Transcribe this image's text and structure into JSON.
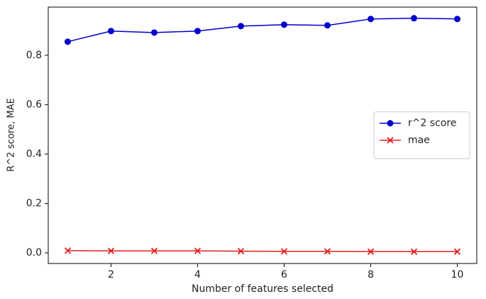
{
  "chart_data": {
    "type": "line",
    "xlabel": "Number of features selected",
    "ylabel": "R^2 score, MAE",
    "x": [
      1,
      2,
      3,
      4,
      5,
      6,
      7,
      8,
      9,
      10
    ],
    "series": [
      {
        "name": "r^2 score",
        "color": "#0000cc",
        "marker": "o",
        "values": [
          0.855,
          0.898,
          0.892,
          0.898,
          0.918,
          0.924,
          0.921,
          0.947,
          0.95,
          0.947
        ]
      },
      {
        "name": "mae",
        "color": "#e02020",
        "marker": "x",
        "values": [
          0.009,
          0.008,
          0.008,
          0.008,
          0.007,
          0.006,
          0.006,
          0.005,
          0.005,
          0.005
        ]
      }
    ],
    "xlim": [
      0.55,
      10.45
    ],
    "ylim": [
      -0.043,
      0.995
    ],
    "xticks": [
      2,
      4,
      6,
      8,
      10
    ],
    "yticks": [
      {
        "value": 0,
        "label": "0.0"
      },
      0.2,
      0.4,
      0.6,
      0.8
    ],
    "legend": "center right"
  }
}
